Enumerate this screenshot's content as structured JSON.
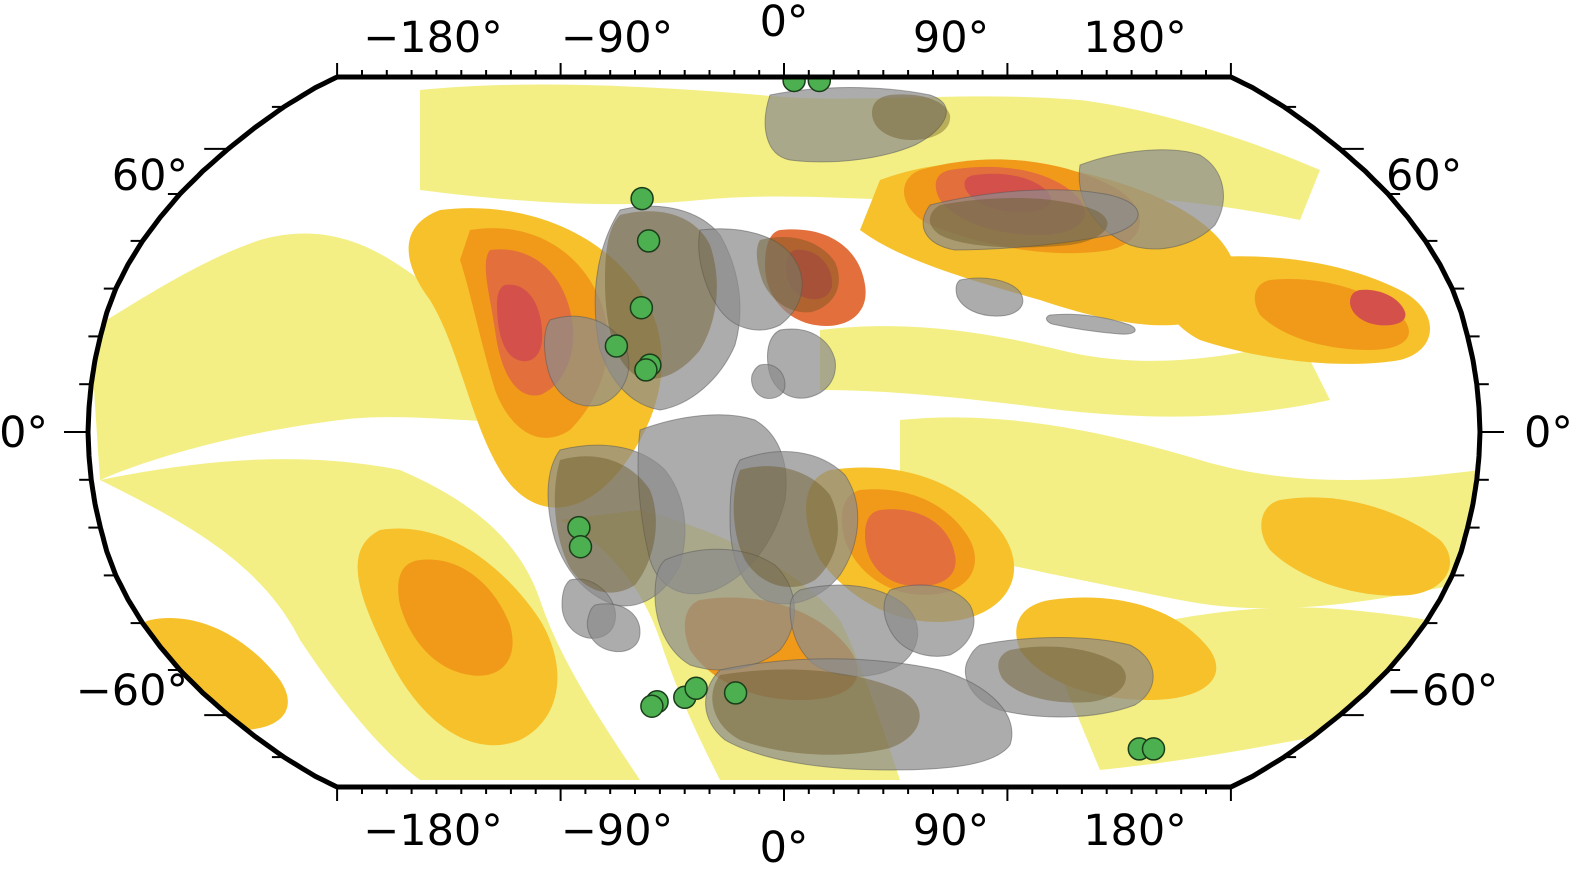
{
  "map": {
    "projection": "Robinson",
    "colors": {
      "frame": "#000000",
      "ocean_base": "#ffffff",
      "heat_levels": [
        "#f3ef85",
        "#f6c12b",
        "#f19a1a",
        "#e36f3c",
        "#d4504a"
      ],
      "continent_fill": "#8c8c8c",
      "continent_dark": "#6a5420",
      "site_marker": "#4caf50",
      "site_outline": "#1a3d1a"
    },
    "longitude_labels": {
      "top": [
        "−180°",
        "−90°",
        "0°",
        "90°",
        "180°"
      ],
      "bottom": [
        "−180°",
        "−90°",
        "0°",
        "90°",
        "180°"
      ]
    },
    "latitude_labels": {
      "left": [
        "60°",
        "0°",
        "−60°"
      ],
      "right": [
        "60°",
        "0°",
        "−60°"
      ]
    },
    "sites": [
      {
        "lon": 4,
        "lat": 77
      },
      {
        "lon": 14,
        "lat": 77
      },
      {
        "lon": -42,
        "lat": 49
      },
      {
        "lon": -38,
        "lat": 40
      },
      {
        "lon": -38,
        "lat": 26
      },
      {
        "lon": -44,
        "lat": 18
      },
      {
        "lon": -35,
        "lat": 14
      },
      {
        "lon": -36,
        "lat": 13
      },
      {
        "lon": -54,
        "lat": -20
      },
      {
        "lon": -54,
        "lat": -24
      },
      {
        "lon": -40,
        "lat": -57
      },
      {
        "lon": -42,
        "lat": -58
      },
      {
        "lon": -31,
        "lat": -56
      },
      {
        "lon": -27,
        "lat": -54
      },
      {
        "lon": -15,
        "lat": -55
      },
      {
        "lon": 125,
        "lat": -68
      },
      {
        "lon": 130,
        "lat": -68
      }
    ]
  }
}
